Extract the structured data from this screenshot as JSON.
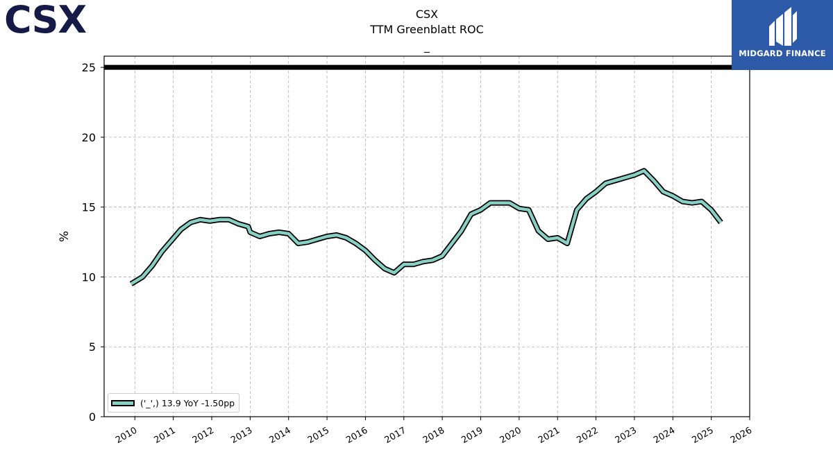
{
  "header": {
    "title_line1": "CSX",
    "title_line2": "TTM Greenblatt ROC",
    "title_line3": "_"
  },
  "logos": {
    "left": "CSX",
    "right": "MIDGARD FINANCE"
  },
  "colors": {
    "series_fill": "#88cfc4",
    "series_outline": "#000000",
    "reference_line": "#000000",
    "logo_left": "#151a47",
    "logo_right_bg": "#2d5aa8"
  },
  "chart_data": {
    "type": "line",
    "title": "CSX\nTTM Greenblatt ROC\n_",
    "xlabel": "",
    "ylabel": "%",
    "xlim": [
      2009.2,
      2026.0
    ],
    "ylim": [
      0,
      25.8
    ],
    "xticks": [
      "2010",
      "2011",
      "2012",
      "2013",
      "2014",
      "2015",
      "2016",
      "2017",
      "2018",
      "2019",
      "2020",
      "2021",
      "2022",
      "2023",
      "2024",
      "2025",
      "2026"
    ],
    "yticks": [
      0,
      5,
      10,
      15,
      20,
      25
    ],
    "grid": true,
    "legend_position": "lower-left",
    "reference_lines": [
      {
        "y": 25
      }
    ],
    "series": [
      {
        "name": "('_',) 13.9 YoY -1.50pp",
        "x": [
          2009.9,
          2010.2,
          2010.45,
          2010.7,
          2010.95,
          2011.2,
          2011.45,
          2011.7,
          2011.95,
          2012.2,
          2012.45,
          2012.7,
          2012.95,
          2013.0,
          2013.25,
          2013.5,
          2013.75,
          2014.0,
          2014.25,
          2014.5,
          2014.75,
          2015.0,
          2015.25,
          2015.5,
          2015.75,
          2016.0,
          2016.25,
          2016.5,
          2016.75,
          2017.0,
          2017.25,
          2017.5,
          2017.75,
          2018.0,
          2018.25,
          2018.5,
          2018.75,
          2019.0,
          2019.25,
          2019.5,
          2019.75,
          2020.0,
          2020.25,
          2020.5,
          2020.75,
          2021.0,
          2021.25,
          2021.5,
          2021.75,
          2022.0,
          2022.25,
          2022.5,
          2022.75,
          2023.0,
          2023.25,
          2023.5,
          2023.75,
          2024.0,
          2024.25,
          2024.5,
          2024.75,
          2025.0,
          2025.25
        ],
        "values": [
          9.5,
          10.0,
          10.8,
          11.8,
          12.6,
          13.4,
          13.9,
          14.1,
          14.0,
          14.1,
          14.1,
          13.8,
          13.6,
          13.2,
          12.9,
          13.1,
          13.2,
          13.1,
          12.4,
          12.5,
          12.7,
          12.9,
          13.0,
          12.8,
          12.4,
          11.9,
          11.2,
          10.6,
          10.3,
          10.9,
          10.9,
          11.1,
          11.2,
          11.5,
          12.4,
          13.3,
          14.5,
          14.8,
          15.3,
          15.3,
          15.3,
          14.9,
          14.8,
          13.3,
          12.7,
          12.8,
          12.4,
          14.8,
          15.6,
          16.1,
          16.7,
          16.9,
          17.1,
          17.3,
          17.6,
          16.9,
          16.1,
          15.8,
          15.4,
          15.3,
          15.4,
          14.8,
          13.9
        ]
      }
    ]
  }
}
